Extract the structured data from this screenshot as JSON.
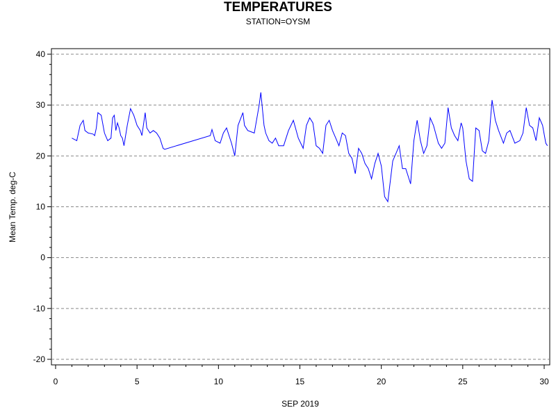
{
  "chart_data": {
    "type": "line",
    "title": "TEMPERATURES",
    "subtitle": "STATION=OYSM",
    "xlabel": "SEP 2019",
    "ylabel": "Mean Temp. deg-C",
    "xlim": [
      0,
      30
    ],
    "ylim": [
      -20,
      40
    ],
    "xticks": [
      0,
      5,
      10,
      15,
      20,
      25,
      30
    ],
    "yticks": [
      -20,
      -10,
      0,
      10,
      20,
      30,
      40
    ],
    "grid": "horizontal dashed",
    "series": [
      {
        "color": "#0000ff",
        "x": [
          1.0,
          1.3,
          1.5,
          1.7,
          1.8,
          2.0,
          2.3,
          2.4,
          2.5,
          2.6,
          2.8,
          3.0,
          3.2,
          3.4,
          3.5,
          3.6,
          3.7,
          3.8,
          3.9,
          4.0,
          4.1,
          4.2,
          4.4,
          4.6,
          4.8,
          5.0,
          5.2,
          5.3,
          5.5,
          5.6,
          5.8,
          6.0,
          6.2,
          6.4,
          6.6,
          6.7,
          9.5,
          9.6,
          9.8,
          10.1,
          10.3,
          10.5,
          10.8,
          11.0,
          11.2,
          11.5,
          11.6,
          11.8,
          12.2,
          12.5,
          12.6,
          12.8,
          12.9,
          13.1,
          13.3,
          13.5,
          13.7,
          14.0,
          14.3,
          14.6,
          14.9,
          15.2,
          15.4,
          15.6,
          15.8,
          16.0,
          16.2,
          16.4,
          16.6,
          16.8,
          17.0,
          17.2,
          17.4,
          17.6,
          17.8,
          18.0,
          18.2,
          18.4,
          18.6,
          18.8,
          19.0,
          19.2,
          19.4,
          19.6,
          19.8,
          20.0,
          20.2,
          20.4,
          20.7,
          20.9,
          21.1,
          21.3,
          21.5,
          21.8,
          22.0,
          22.2,
          22.4,
          22.6,
          22.8,
          23.0,
          23.2,
          23.5,
          23.7,
          23.9,
          24.1,
          24.3,
          24.5,
          24.7,
          24.9,
          25.0,
          25.2,
          25.4,
          25.6,
          25.8,
          26.0,
          26.2,
          26.4,
          26.6,
          26.8,
          27.0,
          27.2,
          27.5,
          27.7,
          27.9,
          28.2,
          28.5,
          28.7,
          28.9,
          29.1,
          29.3,
          29.5,
          29.7,
          29.9,
          30.1,
          30.2
        ],
        "values": [
          23.5,
          23.0,
          26.0,
          27.0,
          25.0,
          24.5,
          24.3,
          24.0,
          25.5,
          28.5,
          28.0,
          24.5,
          23.0,
          23.5,
          27.5,
          28.0,
          25.0,
          26.5,
          25.5,
          24.0,
          23.5,
          22.0,
          26.0,
          29.3,
          28.0,
          26.0,
          25.0,
          24.0,
          28.5,
          25.5,
          24.5,
          25.0,
          24.5,
          23.5,
          21.5,
          21.3,
          24.0,
          25.2,
          23.0,
          22.5,
          24.5,
          25.5,
          22.5,
          20.0,
          26.0,
          28.5,
          26.0,
          25.0,
          24.5,
          30.0,
          32.5,
          26.0,
          24.5,
          23.0,
          22.5,
          23.5,
          22.0,
          22.0,
          25.0,
          27.0,
          23.5,
          21.5,
          26.0,
          27.5,
          26.5,
          22.0,
          21.5,
          20.5,
          26.0,
          27.0,
          25.0,
          23.5,
          22.0,
          24.5,
          24.0,
          20.5,
          19.5,
          16.5,
          21.5,
          20.5,
          18.5,
          17.5,
          15.5,
          18.5,
          20.5,
          18.0,
          12.0,
          11.0,
          19.0,
          20.5,
          22.0,
          17.5,
          17.5,
          14.5,
          23.0,
          27.0,
          23.0,
          20.5,
          22.0,
          27.5,
          26.0,
          22.5,
          21.5,
          22.5,
          29.5,
          25.5,
          24.0,
          23.0,
          26.5,
          25.5,
          19.0,
          15.5,
          15.0,
          25.5,
          25.0,
          21.0,
          20.5,
          23.0,
          31.0,
          27.0,
          25.0,
          22.5,
          24.5,
          25.0,
          22.5,
          23.0,
          24.5,
          29.5,
          26.0,
          25.5,
          23.0,
          27.5,
          26.0,
          22.5,
          22.0
        ]
      }
    ]
  }
}
